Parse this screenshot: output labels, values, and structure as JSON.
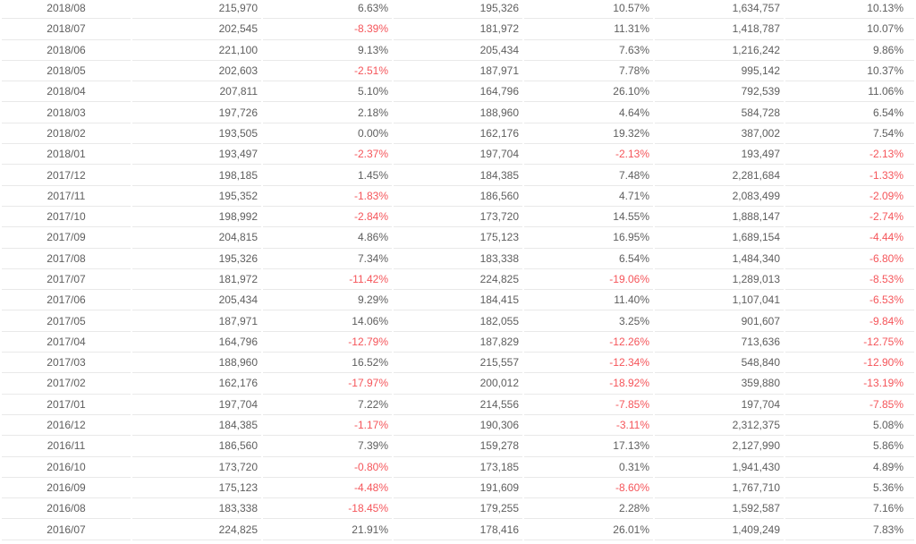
{
  "colors": {
    "text": "#5e5e5e",
    "negative": "#f5555a",
    "border": "#e9e9e9",
    "background": "#ffffff"
  },
  "table": {
    "column_aligns": [
      "center",
      "right",
      "right",
      "right",
      "right",
      "right",
      "right"
    ],
    "column_keys": [
      "date",
      "v1",
      "p1",
      "v2",
      "p2",
      "v3",
      "p3"
    ],
    "rows": [
      [
        "2018/08",
        "215,970",
        "6.63%",
        "195,326",
        "10.57%",
        "1,634,757",
        "10.13%"
      ],
      [
        "2018/07",
        "202,545",
        "-8.39%",
        "181,972",
        "11.31%",
        "1,418,787",
        "10.07%"
      ],
      [
        "2018/06",
        "221,100",
        "9.13%",
        "205,434",
        "7.63%",
        "1,216,242",
        "9.86%"
      ],
      [
        "2018/05",
        "202,603",
        "-2.51%",
        "187,971",
        "7.78%",
        "995,142",
        "10.37%"
      ],
      [
        "2018/04",
        "207,811",
        "5.10%",
        "164,796",
        "26.10%",
        "792,539",
        "11.06%"
      ],
      [
        "2018/03",
        "197,726",
        "2.18%",
        "188,960",
        "4.64%",
        "584,728",
        "6.54%"
      ],
      [
        "2018/02",
        "193,505",
        "0.00%",
        "162,176",
        "19.32%",
        "387,002",
        "7.54%"
      ],
      [
        "2018/01",
        "193,497",
        "-2.37%",
        "197,704",
        "-2.13%",
        "193,497",
        "-2.13%"
      ],
      [
        "2017/12",
        "198,185",
        "1.45%",
        "184,385",
        "7.48%",
        "2,281,684",
        "-1.33%"
      ],
      [
        "2017/11",
        "195,352",
        "-1.83%",
        "186,560",
        "4.71%",
        "2,083,499",
        "-2.09%"
      ],
      [
        "2017/10",
        "198,992",
        "-2.84%",
        "173,720",
        "14.55%",
        "1,888,147",
        "-2.74%"
      ],
      [
        "2017/09",
        "204,815",
        "4.86%",
        "175,123",
        "16.95%",
        "1,689,154",
        "-4.44%"
      ],
      [
        "2017/08",
        "195,326",
        "7.34%",
        "183,338",
        "6.54%",
        "1,484,340",
        "-6.80%"
      ],
      [
        "2017/07",
        "181,972",
        "-11.42%",
        "224,825",
        "-19.06%",
        "1,289,013",
        "-8.53%"
      ],
      [
        "2017/06",
        "205,434",
        "9.29%",
        "184,415",
        "11.40%",
        "1,107,041",
        "-6.53%"
      ],
      [
        "2017/05",
        "187,971",
        "14.06%",
        "182,055",
        "3.25%",
        "901,607",
        "-9.84%"
      ],
      [
        "2017/04",
        "164,796",
        "-12.79%",
        "187,829",
        "-12.26%",
        "713,636",
        "-12.75%"
      ],
      [
        "2017/03",
        "188,960",
        "16.52%",
        "215,557",
        "-12.34%",
        "548,840",
        "-12.90%"
      ],
      [
        "2017/02",
        "162,176",
        "-17.97%",
        "200,012",
        "-18.92%",
        "359,880",
        "-13.19%"
      ],
      [
        "2017/01",
        "197,704",
        "7.22%",
        "214,556",
        "-7.85%",
        "197,704",
        "-7.85%"
      ],
      [
        "2016/12",
        "184,385",
        "-1.17%",
        "190,306",
        "-3.11%",
        "2,312,375",
        "5.08%"
      ],
      [
        "2016/11",
        "186,560",
        "7.39%",
        "159,278",
        "17.13%",
        "2,127,990",
        "5.86%"
      ],
      [
        "2016/10",
        "173,720",
        "-0.80%",
        "173,185",
        "0.31%",
        "1,941,430",
        "4.89%"
      ],
      [
        "2016/09",
        "175,123",
        "-4.48%",
        "191,609",
        "-8.60%",
        "1,767,710",
        "5.36%"
      ],
      [
        "2016/08",
        "183,338",
        "-18.45%",
        "179,255",
        "2.28%",
        "1,592,587",
        "7.16%"
      ],
      [
        "2016/07",
        "224,825",
        "21.91%",
        "178,416",
        "26.01%",
        "1,409,249",
        "7.83%"
      ]
    ]
  }
}
